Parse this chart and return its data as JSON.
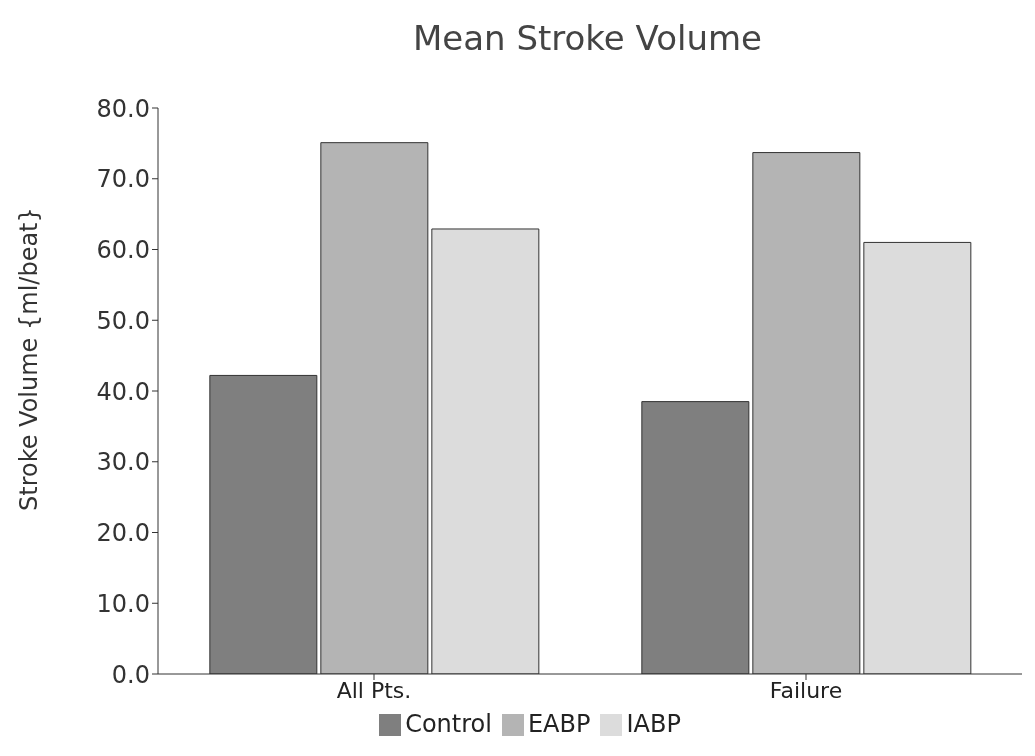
{
  "chart_data": {
    "type": "bar",
    "title": "Mean Stroke Volume",
    "ylabel": "Stroke Volume {ml/beat}",
    "categories": [
      "All Pts.",
      "Failure"
    ],
    "series": [
      {
        "name": "Control",
        "color": "#7f7f7f",
        "values": [
          42.2,
          38.5
        ]
      },
      {
        "name": "EABP",
        "color": "#b4b4b4",
        "values": [
          75.1,
          73.7
        ]
      },
      {
        "name": "IABP",
        "color": "#dcdcdc",
        "values": [
          62.9,
          61.0
        ]
      }
    ],
    "ylim": [
      0,
      80
    ],
    "yticks": [
      {
        "value": 0,
        "label": "0.0"
      },
      {
        "value": 10,
        "label": "10.0"
      },
      {
        "value": 20,
        "label": "20.0"
      },
      {
        "value": 30,
        "label": "30.0"
      },
      {
        "value": 40,
        "label": "40.0"
      },
      {
        "value": 50,
        "label": "50.0"
      },
      {
        "value": 60,
        "label": "60.0"
      },
      {
        "value": 70,
        "label": "70.0"
      },
      {
        "value": 80,
        "label": "80.0"
      }
    ],
    "grid": false,
    "legend": "bottom"
  }
}
